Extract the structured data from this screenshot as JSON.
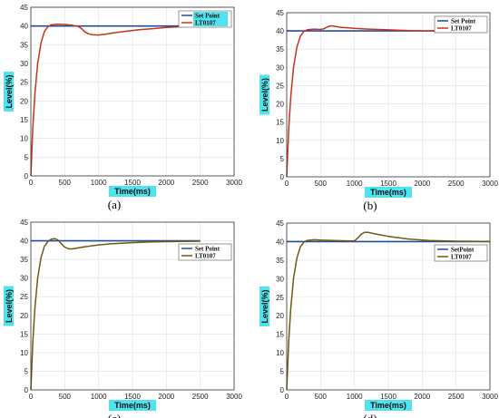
{
  "colors": {
    "setpoint": "#1f4e9c",
    "response_red": "#c8321e",
    "response_olive": "#6f5a12",
    "highlight": "#4fe3ee"
  },
  "chart_data": [
    {
      "type": "line",
      "caption": "(a)",
      "xlabel": "Time(ms)",
      "ylabel": "Level(%)",
      "xlim": [
        0,
        3000
      ],
      "ylim": [
        0,
        45
      ],
      "xticks": [
        "0",
        "500",
        "1000",
        "1500",
        "2000",
        "2500",
        "3000"
      ],
      "yticks": [
        "0",
        "5",
        "10",
        "15",
        "20",
        "25",
        "30",
        "35",
        "40",
        "45"
      ],
      "grid": true,
      "legend_position": "top-right",
      "legend_highlighted": true,
      "axis_labels_highlighted": true,
      "series": [
        {
          "name": "Set Point",
          "color": "#1f4e9c",
          "x": [
            0,
            2500
          ],
          "y": [
            40,
            40
          ]
        },
        {
          "name": "LT0107",
          "color": "#c8321e",
          "x": [
            0,
            30,
            60,
            100,
            150,
            200,
            250,
            300,
            400,
            500,
            600,
            700,
            750,
            800,
            850,
            900,
            1000,
            1100,
            1200,
            1400,
            1600,
            1800,
            2000,
            2200,
            2500
          ],
          "y": [
            0,
            13,
            22,
            30,
            35.5,
            38.5,
            39.8,
            40.3,
            40.5,
            40.4,
            40.2,
            39.9,
            39.3,
            38.4,
            37.9,
            37.7,
            37.6,
            37.8,
            38.1,
            38.6,
            39.0,
            39.3,
            39.6,
            39.8,
            40.0
          ]
        }
      ]
    },
    {
      "type": "line",
      "caption": "(b)",
      "xlabel": "Time(ms)",
      "ylabel": "Level(%)",
      "xlim": [
        0,
        3000
      ],
      "ylim": [
        0,
        45
      ],
      "xticks": [
        "0",
        "500",
        "1000",
        "1500",
        "2000",
        "2500",
        "3000"
      ],
      "yticks": [
        "0",
        "5",
        "10",
        "15",
        "20",
        "25",
        "30",
        "35",
        "40",
        "45"
      ],
      "grid": true,
      "legend_position": "top-right",
      "legend_highlighted": false,
      "axis_labels_highlighted": true,
      "series": [
        {
          "name": "Set Point",
          "color": "#1f4e9c",
          "x": [
            0,
            2500
          ],
          "y": [
            40,
            40
          ]
        },
        {
          "name": "LT0107",
          "color": "#c8321e",
          "x": [
            0,
            30,
            60,
            100,
            150,
            200,
            250,
            300,
            400,
            500,
            550,
            600,
            650,
            700,
            800,
            1000,
            1200,
            1500,
            1800,
            2000,
            2200,
            2500
          ],
          "y": [
            0,
            13,
            22,
            30,
            35.5,
            38.5,
            39.8,
            40.3,
            40.5,
            40.4,
            40.6,
            41.1,
            41.4,
            41.3,
            41.0,
            40.7,
            40.5,
            40.3,
            40.1,
            40.0,
            40.0,
            40.0
          ]
        }
      ]
    },
    {
      "type": "line",
      "caption": "(c)",
      "xlabel": "Time(ms)",
      "ylabel": "Level(%)",
      "xlim": [
        0,
        3000
      ],
      "ylim": [
        0,
        45
      ],
      "xticks": [
        "0",
        "500",
        "1000",
        "1500",
        "2000",
        "2500",
        "3000"
      ],
      "yticks": [
        "0",
        "5",
        "10",
        "15",
        "20",
        "25",
        "30",
        "35",
        "40",
        "45"
      ],
      "grid": true,
      "legend_position": "right",
      "legend_highlighted": false,
      "axis_labels_highlighted": true,
      "series": [
        {
          "name": "Set Point",
          "color": "#1f4e9c",
          "x": [
            0,
            2500
          ],
          "y": [
            40,
            40
          ]
        },
        {
          "name": "LT0107",
          "color": "#6f5a12",
          "x": [
            0,
            30,
            60,
            100,
            150,
            200,
            250,
            300,
            350,
            400,
            450,
            500,
            550,
            600,
            700,
            800,
            1000,
            1200,
            1500,
            1800,
            2100,
            2500
          ],
          "y": [
            0,
            13,
            22,
            30,
            35.5,
            38.5,
            39.8,
            40.4,
            40.6,
            40.2,
            39.2,
            38.3,
            37.9,
            37.8,
            38.1,
            38.4,
            38.9,
            39.2,
            39.5,
            39.7,
            39.8,
            39.9
          ]
        }
      ]
    },
    {
      "type": "line",
      "caption": "(d)",
      "xlabel": "Time(ms)",
      "ylabel": "Level(%)",
      "xlim": [
        0,
        3000
      ],
      "ylim": [
        0,
        45
      ],
      "xticks": [
        "0",
        "500",
        "1000",
        "1500",
        "2000",
        "2500",
        "3000"
      ],
      "yticks": [
        "0",
        "5",
        "10",
        "15",
        "20",
        "25",
        "30",
        "35",
        "40",
        "45"
      ],
      "grid": true,
      "legend_position": "right",
      "legend_highlighted": false,
      "axis_labels_highlighted": true,
      "series": [
        {
          "name": "SetPoint",
          "color": "#1f4e9c",
          "x": [
            0,
            3000
          ],
          "y": [
            40,
            40
          ]
        },
        {
          "name": "LT0107",
          "color": "#6f5a12",
          "x": [
            0,
            30,
            60,
            100,
            150,
            200,
            250,
            300,
            400,
            500,
            700,
            900,
            1000,
            1050,
            1100,
            1150,
            1200,
            1300,
            1500,
            1800,
            2100,
            2500,
            3000
          ],
          "y": [
            0,
            13,
            22,
            30,
            35.5,
            38.5,
            39.8,
            40.3,
            40.5,
            40.4,
            40.3,
            40.2,
            40.2,
            41.0,
            42.0,
            42.5,
            42.5,
            42.1,
            41.4,
            40.7,
            40.3,
            40.1,
            40.0
          ]
        }
      ]
    }
  ]
}
